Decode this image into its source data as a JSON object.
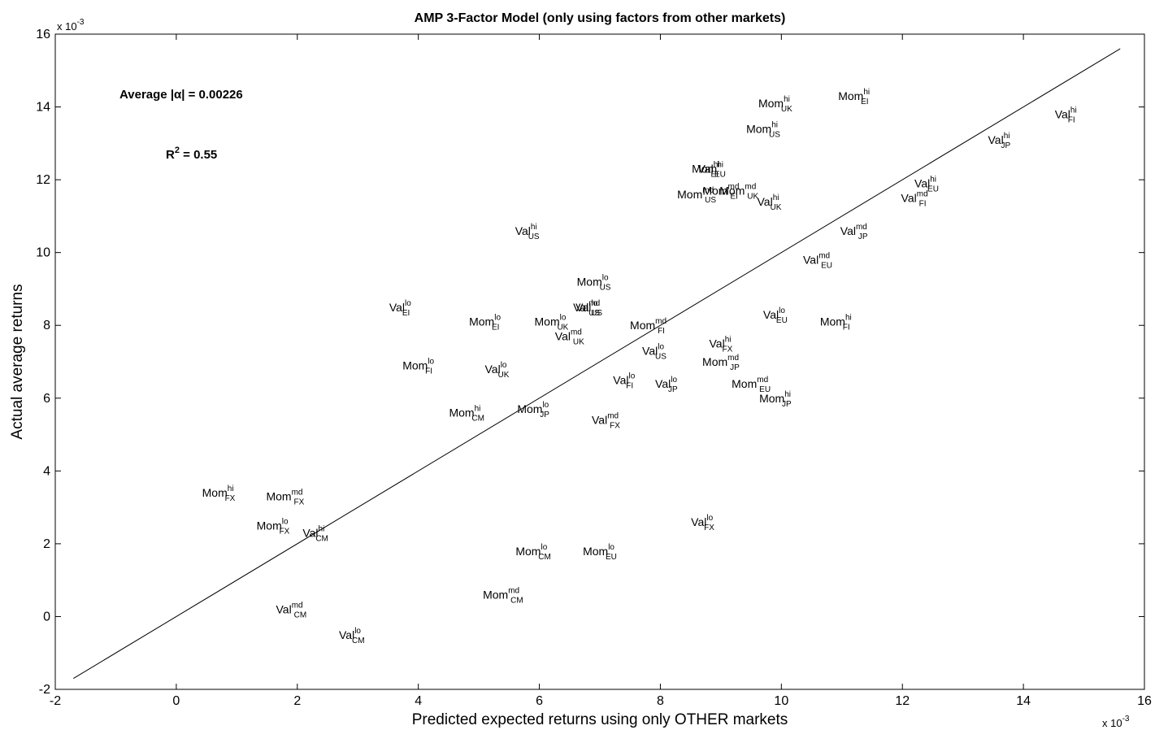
{
  "chart_data": {
    "type": "scatter",
    "title": "AMP 3-Factor Model (only using factors from other markets)",
    "xlabel": "Predicted expected returns using only OTHER markets",
    "ylabel": "Actual average returns",
    "xlim": [
      -2,
      16
    ],
    "ylim": [
      -2,
      16
    ],
    "scale_label_x": "x 10",
    "scale_label_y": "x 10",
    "scale_exponent": "-3",
    "x_ticks": [
      "-2",
      "0",
      "2",
      "4",
      "6",
      "8",
      "10",
      "12",
      "14",
      "16"
    ],
    "y_ticks": [
      "-2",
      "0",
      "2",
      "4",
      "6",
      "8",
      "10",
      "12",
      "14",
      "16"
    ],
    "grid": false,
    "annotations": {
      "average_alpha": "Average |α| = 0.00226",
      "r2_main": "R",
      "r2_sup": "2",
      "r2_rest": " = 0.55"
    },
    "fit_line": {
      "x": [
        -1.7,
        15.6
      ],
      "y": [
        -1.7,
        15.6
      ]
    },
    "points": [
      {
        "base": "Mom",
        "sup": "hi",
        "sub": "EI",
        "x": 11.2,
        "y": 14.3
      },
      {
        "base": "Mom",
        "sup": "hi",
        "sub": "UK",
        "x": 9.9,
        "y": 14.1
      },
      {
        "base": "Val",
        "sup": "hi",
        "sub": "FI",
        "x": 14.7,
        "y": 13.8
      },
      {
        "base": "Mom",
        "sup": "hi",
        "sub": "US",
        "x": 9.7,
        "y": 13.4
      },
      {
        "base": "Val",
        "sup": "hi",
        "sub": "JP",
        "x": 13.6,
        "y": 13.1
      },
      {
        "base": "Val",
        "sup": "hi",
        "sub": "EI",
        "x": 8.8,
        "y": 12.3
      },
      {
        "base": "Mom",
        "sup": "hi",
        "sub": "EU",
        "x": 8.8,
        "y": 12.3
      },
      {
        "base": "Val",
        "sup": "hi",
        "sub": "EU",
        "x": 12.4,
        "y": 11.9
      },
      {
        "base": "Mom",
        "sup": "md",
        "sub": "US",
        "x": 8.6,
        "y": 11.6
      },
      {
        "base": "Mom",
        "sup": "md",
        "sub": "UK",
        "x": 9.3,
        "y": 11.7
      },
      {
        "base": "Mom",
        "sup": "md",
        "sub": "EI",
        "x": 9.0,
        "y": 11.7
      },
      {
        "base": "Val",
        "sup": "md",
        "sub": "FI",
        "x": 12.2,
        "y": 11.5
      },
      {
        "base": "Val",
        "sup": "hi",
        "sub": "UK",
        "x": 9.8,
        "y": 11.4
      },
      {
        "base": "Val",
        "sup": "hi",
        "sub": "US",
        "x": 5.8,
        "y": 10.6
      },
      {
        "base": "Val",
        "sup": "md",
        "sub": "JP",
        "x": 11.2,
        "y": 10.6
      },
      {
        "base": "Val",
        "sup": "md",
        "sub": "EU",
        "x": 10.6,
        "y": 9.8
      },
      {
        "base": "Mom",
        "sup": "lo",
        "sub": "US",
        "x": 6.9,
        "y": 9.2
      },
      {
        "base": "Val",
        "sup": "md",
        "sub": "US",
        "x": 6.8,
        "y": 8.5
      },
      {
        "base": "Val",
        "sup": "lo",
        "sub": "US",
        "x": 6.8,
        "y": 8.5
      },
      {
        "base": "Val",
        "sup": "lo",
        "sub": "EI",
        "x": 3.7,
        "y": 8.5
      },
      {
        "base": "Val",
        "sup": "lo",
        "sub": "EU",
        "x": 9.9,
        "y": 8.3
      },
      {
        "base": "Mom",
        "sup": "lo",
        "sub": "EI",
        "x": 5.1,
        "y": 8.1
      },
      {
        "base": "Mom",
        "sup": "lo",
        "sub": "UK",
        "x": 6.2,
        "y": 8.1
      },
      {
        "base": "Mom",
        "sup": "hi",
        "sub": "FI",
        "x": 10.9,
        "y": 8.1
      },
      {
        "base": "Mom",
        "sup": "md",
        "sub": "FI",
        "x": 7.8,
        "y": 8.0
      },
      {
        "base": "Val",
        "sup": "md",
        "sub": "UK",
        "x": 6.5,
        "y": 7.7
      },
      {
        "base": "Val",
        "sup": "hi",
        "sub": "FX",
        "x": 9.0,
        "y": 7.5
      },
      {
        "base": "Val",
        "sup": "lo",
        "sub": "US",
        "x": 7.9,
        "y": 7.3
      },
      {
        "base": "Mom",
        "sup": "md",
        "sub": "JP",
        "x": 9.0,
        "y": 7.0
      },
      {
        "base": "Mom",
        "sup": "lo",
        "sub": "FI",
        "x": 4.0,
        "y": 6.9
      },
      {
        "base": "Val",
        "sup": "lo",
        "sub": "UK",
        "x": 5.3,
        "y": 6.8
      },
      {
        "base": "Val",
        "sup": "lo",
        "sub": "FI",
        "x": 7.4,
        "y": 6.5
      },
      {
        "base": "Val",
        "sup": "lo",
        "sub": "JP",
        "x": 8.1,
        "y": 6.4
      },
      {
        "base": "Mom",
        "sup": "md",
        "sub": "EU",
        "x": 9.5,
        "y": 6.4
      },
      {
        "base": "Mom",
        "sup": "hi",
        "sub": "JP",
        "x": 9.9,
        "y": 6.0
      },
      {
        "base": "Mom",
        "sup": "hi",
        "sub": "CM",
        "x": 4.8,
        "y": 5.6
      },
      {
        "base": "Mom",
        "sup": "lo",
        "sub": "JP",
        "x": 5.9,
        "y": 5.7
      },
      {
        "base": "Val",
        "sup": "md",
        "sub": "FX",
        "x": 7.1,
        "y": 5.4
      },
      {
        "base": "Mom",
        "sup": "hi",
        "sub": "FX",
        "x": 0.7,
        "y": 3.4
      },
      {
        "base": "Mom",
        "sup": "md",
        "sub": "FX",
        "x": 1.8,
        "y": 3.3
      },
      {
        "base": "Val",
        "sup": "lo",
        "sub": "FX",
        "x": 8.7,
        "y": 2.6
      },
      {
        "base": "Mom",
        "sup": "lo",
        "sub": "FX",
        "x": 1.6,
        "y": 2.5
      },
      {
        "base": "Val",
        "sup": "hi",
        "sub": "CM",
        "x": 2.3,
        "y": 2.3
      },
      {
        "base": "Mom",
        "sup": "lo",
        "sub": "CM",
        "x": 5.9,
        "y": 1.8
      },
      {
        "base": "Mom",
        "sup": "lo",
        "sub": "EU",
        "x": 7.0,
        "y": 1.8
      },
      {
        "base": "Mom",
        "sup": "md",
        "sub": "CM",
        "x": 5.4,
        "y": 0.6
      },
      {
        "base": "Val",
        "sup": "md",
        "sub": "CM",
        "x": 1.9,
        "y": 0.2
      },
      {
        "base": "Val",
        "sup": "lo",
        "sub": "CM",
        "x": 2.9,
        "y": -0.5
      }
    ]
  }
}
